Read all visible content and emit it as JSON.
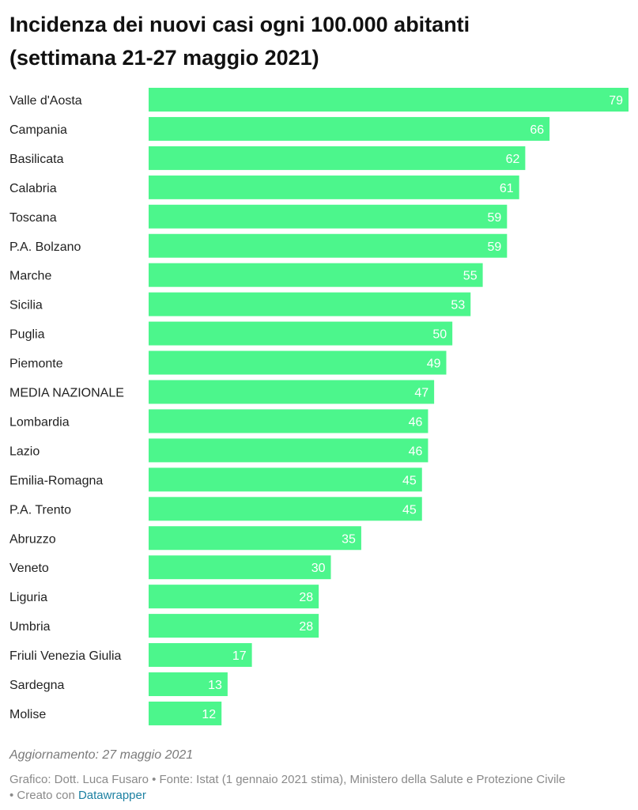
{
  "title_line1": "Incidenza dei nuovi casi ogni 100.000 abitanti",
  "title_line2": "(settimana 21-27 maggio 2021)",
  "chart_data": {
    "type": "bar",
    "orientation": "horizontal",
    "categories": [
      "Valle d'Aosta",
      "Campania",
      "Basilicata",
      "Calabria",
      "Toscana",
      "P.A. Bolzano",
      "Marche",
      "Sicilia",
      "Puglia",
      "Piemonte",
      "MEDIA NAZIONALE",
      "Lombardia",
      "Lazio",
      "Emilia-Romagna",
      "P.A. Trento",
      "Abruzzo",
      "Veneto",
      "Liguria",
      "Umbria",
      "Friuli Venezia Giulia",
      "Sardegna",
      "Molise"
    ],
    "values": [
      79,
      66,
      62,
      61,
      59,
      59,
      55,
      53,
      50,
      49,
      47,
      46,
      46,
      45,
      45,
      35,
      30,
      28,
      28,
      17,
      13,
      12
    ],
    "xlim": [
      0,
      79
    ],
    "grid": false,
    "legend": "none",
    "bar_color": "#4cf68c",
    "value_label_color": "#ffffff"
  },
  "footer": {
    "update": "Aggiornamento: 27 maggio 2021",
    "credits": "Grafico: Dott. Luca Fusaro • Fonte: Istat (1 gennaio 2021 stima), Ministero della Salute e Protezione Civile",
    "created_prefix": "• Creato con ",
    "created_link": "Datawrapper"
  }
}
